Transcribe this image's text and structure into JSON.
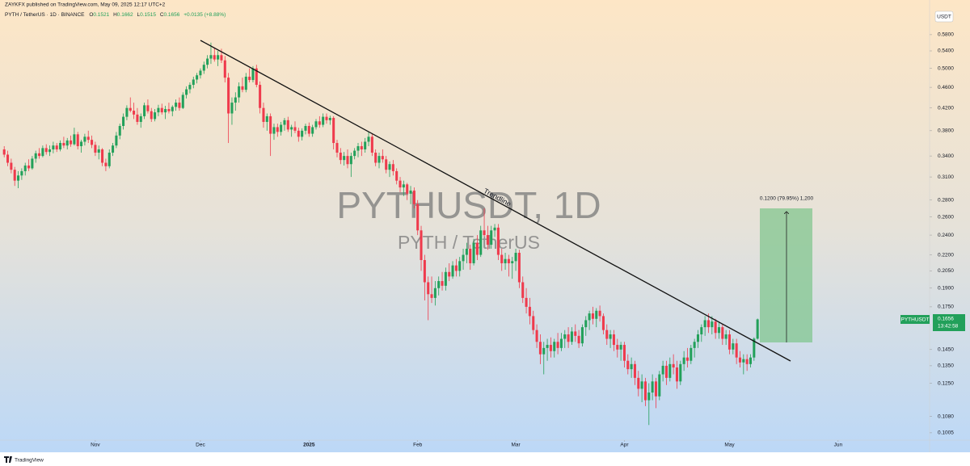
{
  "header": {
    "publisher": "ZAYKFX published on TradingView.com, May 09, 2025 12:17 UTC+2",
    "symbol_line": "PYTH / TetherUS · 1D · BINANCE",
    "ohlc": [
      "O",
      "0.1521",
      "H",
      "0.1662",
      "L",
      "0.1515",
      "C",
      "0.1656",
      "+0.0135 (+8.88%)"
    ]
  },
  "watermark": {
    "symbol": "PYTHUSDT, 1D",
    "name": "PYTH / TetherUS"
  },
  "annotations": {
    "trendline": "Trendline",
    "measure": "0.1200 (79.95%) 1,200"
  },
  "price_label": {
    "symbol": "PYTHUSDT",
    "price": "0.1656",
    "countdown": "13:42:58"
  },
  "currency": "USDT",
  "brand": "TradingView",
  "chart_data": {
    "type": "candlestick",
    "log_scale": true,
    "grid": false,
    "up_color": "#22a05a",
    "down_color": "#ef3a4c",
    "ylim": [
      0.0973,
      0.652
    ],
    "yticks": [
      {
        "value": 0.58,
        "label": "0.5800"
      },
      {
        "value": 0.54,
        "label": "0.5400"
      },
      {
        "value": 0.5,
        "label": "0.5000"
      },
      {
        "value": 0.46,
        "label": "0.4600"
      },
      {
        "value": 0.42,
        "label": "0.4200"
      },
      {
        "value": 0.38,
        "label": "0.3800"
      },
      {
        "value": 0.34,
        "label": "0.3400"
      },
      {
        "value": 0.31,
        "label": "0.3100"
      },
      {
        "value": 0.28,
        "label": "0.2800"
      },
      {
        "value": 0.26,
        "label": "0.2600"
      },
      {
        "value": 0.24,
        "label": "0.2400"
      },
      {
        "value": 0.22,
        "label": "0.2200"
      },
      {
        "value": 0.205,
        "label": "0.2050"
      },
      {
        "value": 0.19,
        "label": "0.1900"
      },
      {
        "value": 0.175,
        "label": "0.1750"
      },
      {
        "value": 0.145,
        "label": "0.1450"
      },
      {
        "value": 0.135,
        "label": "0.1350"
      },
      {
        "value": 0.125,
        "label": "0.1250"
      },
      {
        "value": 0.108,
        "label": "0.1080"
      },
      {
        "value": 0.1005,
        "label": "0.1005"
      }
    ],
    "xlim": [
      -1.2,
      264.1
    ],
    "xticks": [
      {
        "value": 26,
        "label": "Nov"
      },
      {
        "value": 56,
        "label": "Dec"
      },
      {
        "value": 87,
        "label": "2025"
      },
      {
        "value": 118,
        "label": "Feb"
      },
      {
        "value": 146,
        "label": "Mar"
      },
      {
        "value": 177,
        "label": "Apr"
      },
      {
        "value": 207,
        "label": "May"
      },
      {
        "value": 238,
        "label": "Jun"
      }
    ],
    "values": [
      [
        0.35,
        0.355,
        0.338,
        0.342
      ],
      [
        0.342,
        0.348,
        0.325,
        0.33
      ],
      [
        0.33,
        0.336,
        0.315,
        0.32
      ],
      [
        0.32,
        0.324,
        0.298,
        0.305
      ],
      [
        0.305,
        0.318,
        0.295,
        0.312
      ],
      [
        0.312,
        0.322,
        0.306,
        0.318
      ],
      [
        0.318,
        0.33,
        0.312,
        0.326
      ],
      [
        0.326,
        0.335,
        0.318,
        0.322
      ],
      [
        0.322,
        0.34,
        0.32,
        0.336
      ],
      [
        0.336,
        0.348,
        0.33,
        0.344
      ],
      [
        0.344,
        0.352,
        0.336,
        0.34
      ],
      [
        0.34,
        0.356,
        0.338,
        0.352
      ],
      [
        0.352,
        0.358,
        0.342,
        0.346
      ],
      [
        0.346,
        0.356,
        0.34,
        0.35
      ],
      [
        0.35,
        0.362,
        0.344,
        0.356
      ],
      [
        0.356,
        0.36,
        0.346,
        0.35
      ],
      [
        0.35,
        0.364,
        0.347,
        0.36
      ],
      [
        0.36,
        0.37,
        0.352,
        0.356
      ],
      [
        0.356,
        0.368,
        0.35,
        0.364
      ],
      [
        0.364,
        0.372,
        0.354,
        0.358
      ],
      [
        0.358,
        0.385,
        0.356,
        0.374
      ],
      [
        0.374,
        0.378,
        0.35,
        0.355
      ],
      [
        0.355,
        0.365,
        0.345,
        0.362
      ],
      [
        0.362,
        0.375,
        0.356,
        0.37
      ],
      [
        0.37,
        0.38,
        0.36,
        0.365
      ],
      [
        0.365,
        0.372,
        0.352,
        0.357
      ],
      [
        0.357,
        0.362,
        0.34,
        0.345
      ],
      [
        0.345,
        0.356,
        0.335,
        0.35
      ],
      [
        0.35,
        0.352,
        0.325,
        0.33
      ],
      [
        0.33,
        0.336,
        0.318,
        0.325
      ],
      [
        0.325,
        0.35,
        0.322,
        0.345
      ],
      [
        0.345,
        0.36,
        0.34,
        0.356
      ],
      [
        0.356,
        0.378,
        0.352,
        0.372
      ],
      [
        0.372,
        0.392,
        0.366,
        0.388
      ],
      [
        0.388,
        0.41,
        0.382,
        0.404
      ],
      [
        0.404,
        0.425,
        0.398,
        0.42
      ],
      [
        0.42,
        0.44,
        0.412,
        0.415
      ],
      [
        0.415,
        0.43,
        0.4,
        0.408
      ],
      [
        0.408,
        0.42,
        0.39,
        0.395
      ],
      [
        0.395,
        0.41,
        0.385,
        0.405
      ],
      [
        0.405,
        0.43,
        0.4,
        0.425
      ],
      [
        0.425,
        0.436,
        0.41,
        0.414
      ],
      [
        0.414,
        0.42,
        0.395,
        0.4
      ],
      [
        0.4,
        0.418,
        0.396,
        0.412
      ],
      [
        0.412,
        0.426,
        0.405,
        0.42
      ],
      [
        0.42,
        0.428,
        0.408,
        0.412
      ],
      [
        0.412,
        0.424,
        0.4,
        0.418
      ],
      [
        0.418,
        0.43,
        0.41,
        0.414
      ],
      [
        0.414,
        0.425,
        0.405,
        0.422
      ],
      [
        0.422,
        0.436,
        0.415,
        0.43
      ],
      [
        0.43,
        0.44,
        0.415,
        0.42
      ],
      [
        0.42,
        0.45,
        0.418,
        0.445
      ],
      [
        0.445,
        0.462,
        0.438,
        0.456
      ],
      [
        0.456,
        0.47,
        0.448,
        0.465
      ],
      [
        0.465,
        0.482,
        0.458,
        0.476
      ],
      [
        0.476,
        0.49,
        0.468,
        0.485
      ],
      [
        0.485,
        0.5,
        0.478,
        0.495
      ],
      [
        0.495,
        0.515,
        0.488,
        0.508
      ],
      [
        0.508,
        0.53,
        0.5,
        0.522
      ],
      [
        0.522,
        0.56,
        0.51,
        0.53
      ],
      [
        0.53,
        0.548,
        0.515,
        0.52
      ],
      [
        0.52,
        0.54,
        0.505,
        0.53
      ],
      [
        0.53,
        0.545,
        0.512,
        0.518
      ],
      [
        0.518,
        0.528,
        0.47,
        0.48
      ],
      [
        0.48,
        0.49,
        0.36,
        0.41
      ],
      [
        0.41,
        0.44,
        0.39,
        0.43
      ],
      [
        0.43,
        0.45,
        0.415,
        0.44
      ],
      [
        0.44,
        0.47,
        0.43,
        0.462
      ],
      [
        0.462,
        0.48,
        0.45,
        0.455
      ],
      [
        0.455,
        0.49,
        0.45,
        0.482
      ],
      [
        0.482,
        0.5,
        0.47,
        0.475
      ],
      [
        0.475,
        0.505,
        0.47,
        0.5
      ],
      [
        0.5,
        0.508,
        0.46,
        0.465
      ],
      [
        0.465,
        0.472,
        0.41,
        0.42
      ],
      [
        0.42,
        0.43,
        0.385,
        0.395
      ],
      [
        0.395,
        0.41,
        0.38,
        0.405
      ],
      [
        0.405,
        0.41,
        0.34,
        0.375
      ],
      [
        0.375,
        0.392,
        0.365,
        0.386
      ],
      [
        0.386,
        0.392,
        0.37,
        0.378
      ],
      [
        0.378,
        0.395,
        0.372,
        0.39
      ],
      [
        0.39,
        0.402,
        0.38,
        0.398
      ],
      [
        0.398,
        0.404,
        0.378,
        0.382
      ],
      [
        0.382,
        0.39,
        0.37,
        0.386
      ],
      [
        0.386,
        0.396,
        0.376,
        0.38
      ],
      [
        0.38,
        0.385,
        0.362,
        0.37
      ],
      [
        0.37,
        0.384,
        0.364,
        0.38
      ],
      [
        0.38,
        0.392,
        0.374,
        0.388
      ],
      [
        0.388,
        0.394,
        0.37,
        0.375
      ],
      [
        0.375,
        0.39,
        0.37,
        0.386
      ],
      [
        0.386,
        0.4,
        0.382,
        0.396
      ],
      [
        0.396,
        0.405,
        0.385,
        0.39
      ],
      [
        0.39,
        0.41,
        0.386,
        0.404
      ],
      [
        0.404,
        0.41,
        0.392,
        0.398
      ],
      [
        0.398,
        0.406,
        0.39,
        0.402
      ],
      [
        0.402,
        0.405,
        0.35,
        0.36
      ],
      [
        0.36,
        0.365,
        0.338,
        0.345
      ],
      [
        0.345,
        0.352,
        0.328,
        0.334
      ],
      [
        0.334,
        0.346,
        0.326,
        0.34
      ],
      [
        0.34,
        0.35,
        0.322,
        0.328
      ],
      [
        0.328,
        0.345,
        0.31,
        0.34
      ],
      [
        0.34,
        0.352,
        0.335,
        0.348
      ],
      [
        0.348,
        0.36,
        0.338,
        0.355
      ],
      [
        0.355,
        0.362,
        0.34,
        0.35
      ],
      [
        0.35,
        0.368,
        0.345,
        0.362
      ],
      [
        0.362,
        0.378,
        0.355,
        0.37
      ],
      [
        0.37,
        0.375,
        0.34,
        0.345
      ],
      [
        0.345,
        0.35,
        0.325,
        0.33
      ],
      [
        0.33,
        0.345,
        0.322,
        0.34
      ],
      [
        0.34,
        0.35,
        0.33,
        0.335
      ],
      [
        0.335,
        0.34,
        0.315,
        0.32
      ],
      [
        0.32,
        0.332,
        0.31,
        0.328
      ],
      [
        0.328,
        0.334,
        0.312,
        0.318
      ],
      [
        0.318,
        0.322,
        0.3,
        0.305
      ],
      [
        0.305,
        0.31,
        0.29,
        0.296
      ],
      [
        0.296,
        0.305,
        0.285,
        0.3
      ],
      [
        0.3,
        0.302,
        0.28,
        0.288
      ],
      [
        0.288,
        0.298,
        0.275,
        0.292
      ],
      [
        0.292,
        0.296,
        0.27,
        0.275
      ],
      [
        0.275,
        0.28,
        0.24,
        0.245
      ],
      [
        0.245,
        0.25,
        0.205,
        0.215
      ],
      [
        0.215,
        0.22,
        0.18,
        0.195
      ],
      [
        0.195,
        0.2,
        0.165,
        0.185
      ],
      [
        0.185,
        0.2,
        0.178,
        0.182
      ],
      [
        0.182,
        0.196,
        0.176,
        0.19
      ],
      [
        0.19,
        0.2,
        0.184,
        0.196
      ],
      [
        0.196,
        0.204,
        0.188,
        0.192
      ],
      [
        0.192,
        0.208,
        0.188,
        0.204
      ],
      [
        0.204,
        0.212,
        0.196,
        0.2
      ],
      [
        0.2,
        0.214,
        0.198,
        0.21
      ],
      [
        0.21,
        0.216,
        0.2,
        0.205
      ],
      [
        0.205,
        0.218,
        0.2,
        0.214
      ],
      [
        0.214,
        0.226,
        0.206,
        0.22
      ],
      [
        0.22,
        0.232,
        0.212,
        0.226
      ],
      [
        0.226,
        0.23,
        0.206,
        0.212
      ],
      [
        0.212,
        0.236,
        0.21,
        0.232
      ],
      [
        0.232,
        0.24,
        0.215,
        0.22
      ],
      [
        0.22,
        0.25,
        0.218,
        0.245
      ],
      [
        0.245,
        0.27,
        0.238,
        0.24
      ],
      [
        0.24,
        0.25,
        0.225,
        0.23
      ],
      [
        0.23,
        0.25,
        0.226,
        0.245
      ],
      [
        0.245,
        0.252,
        0.238,
        0.248
      ],
      [
        0.248,
        0.252,
        0.215,
        0.22
      ],
      [
        0.22,
        0.226,
        0.205,
        0.212
      ],
      [
        0.212,
        0.222,
        0.206,
        0.216
      ],
      [
        0.216,
        0.22,
        0.2,
        0.212
      ],
      [
        0.212,
        0.218,
        0.198,
        0.214
      ],
      [
        0.214,
        0.226,
        0.205,
        0.222
      ],
      [
        0.222,
        0.225,
        0.19,
        0.195
      ],
      [
        0.195,
        0.2,
        0.178,
        0.182
      ],
      [
        0.182,
        0.19,
        0.17,
        0.175
      ],
      [
        0.175,
        0.182,
        0.162,
        0.168
      ],
      [
        0.168,
        0.172,
        0.155,
        0.158
      ],
      [
        0.158,
        0.162,
        0.146,
        0.15
      ],
      [
        0.15,
        0.155,
        0.136,
        0.142
      ],
      [
        0.142,
        0.15,
        0.13,
        0.146
      ],
      [
        0.146,
        0.152,
        0.138,
        0.148
      ],
      [
        0.148,
        0.153,
        0.14,
        0.144
      ],
      [
        0.144,
        0.152,
        0.14,
        0.15
      ],
      [
        0.15,
        0.156,
        0.142,
        0.146
      ],
      [
        0.146,
        0.156,
        0.144,
        0.152
      ],
      [
        0.152,
        0.158,
        0.146,
        0.155
      ],
      [
        0.155,
        0.16,
        0.146,
        0.15
      ],
      [
        0.15,
        0.16,
        0.148,
        0.157
      ],
      [
        0.157,
        0.162,
        0.15,
        0.154
      ],
      [
        0.154,
        0.158,
        0.146,
        0.149
      ],
      [
        0.149,
        0.162,
        0.147,
        0.16
      ],
      [
        0.16,
        0.168,
        0.154,
        0.165
      ],
      [
        0.165,
        0.172,
        0.158,
        0.17
      ],
      [
        0.17,
        0.175,
        0.162,
        0.166
      ],
      [
        0.166,
        0.174,
        0.16,
        0.172
      ],
      [
        0.172,
        0.176,
        0.164,
        0.168
      ],
      [
        0.168,
        0.17,
        0.155,
        0.158
      ],
      [
        0.158,
        0.162,
        0.148,
        0.152
      ],
      [
        0.152,
        0.158,
        0.146,
        0.155
      ],
      [
        0.155,
        0.158,
        0.144,
        0.148
      ],
      [
        0.148,
        0.152,
        0.14,
        0.145
      ],
      [
        0.145,
        0.15,
        0.138,
        0.148
      ],
      [
        0.148,
        0.15,
        0.134,
        0.138
      ],
      [
        0.138,
        0.142,
        0.13,
        0.133
      ],
      [
        0.133,
        0.14,
        0.128,
        0.136
      ],
      [
        0.136,
        0.138,
        0.124,
        0.128
      ],
      [
        0.128,
        0.132,
        0.118,
        0.122
      ],
      [
        0.122,
        0.13,
        0.115,
        0.126
      ],
      [
        0.126,
        0.128,
        0.113,
        0.116
      ],
      [
        0.116,
        0.125,
        0.104,
        0.12
      ],
      [
        0.12,
        0.13,
        0.116,
        0.126
      ],
      [
        0.126,
        0.128,
        0.112,
        0.118
      ],
      [
        0.118,
        0.132,
        0.116,
        0.13
      ],
      [
        0.13,
        0.138,
        0.126,
        0.135
      ],
      [
        0.135,
        0.138,
        0.124,
        0.128
      ],
      [
        0.128,
        0.14,
        0.126,
        0.136
      ],
      [
        0.136,
        0.142,
        0.13,
        0.134
      ],
      [
        0.134,
        0.138,
        0.122,
        0.126
      ],
      [
        0.126,
        0.138,
        0.124,
        0.136
      ],
      [
        0.136,
        0.144,
        0.132,
        0.14
      ],
      [
        0.14,
        0.146,
        0.134,
        0.138
      ],
      [
        0.138,
        0.148,
        0.136,
        0.146
      ],
      [
        0.146,
        0.152,
        0.14,
        0.15
      ],
      [
        0.15,
        0.158,
        0.146,
        0.155
      ],
      [
        0.155,
        0.162,
        0.15,
        0.16
      ],
      [
        0.16,
        0.168,
        0.154,
        0.165
      ],
      [
        0.165,
        0.17,
        0.156,
        0.16
      ],
      [
        0.16,
        0.168,
        0.155,
        0.164
      ],
      [
        0.164,
        0.166,
        0.152,
        0.156
      ],
      [
        0.156,
        0.164,
        0.152,
        0.16
      ],
      [
        0.16,
        0.162,
        0.148,
        0.152
      ],
      [
        0.152,
        0.158,
        0.148,
        0.155
      ],
      [
        0.155,
        0.158,
        0.142,
        0.145
      ],
      [
        0.145,
        0.152,
        0.142,
        0.149
      ],
      [
        0.149,
        0.152,
        0.136,
        0.14
      ],
      [
        0.14,
        0.144,
        0.134,
        0.137
      ],
      [
        0.137,
        0.142,
        0.13,
        0.139
      ],
      [
        0.139,
        0.142,
        0.132,
        0.136
      ],
      [
        0.136,
        0.142,
        0.134,
        0.14
      ],
      [
        0.14,
        0.153,
        0.138,
        0.1521
      ],
      [
        0.1521,
        0.1662,
        0.1515,
        0.1656
      ]
    ]
  }
}
